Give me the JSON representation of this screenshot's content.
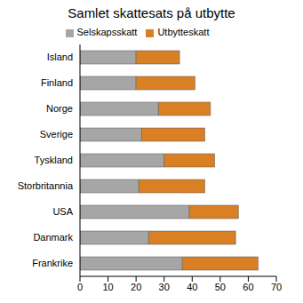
{
  "chart_data": {
    "type": "bar",
    "title": "Samlet skattesats på utbytte",
    "orientation": "horizontal",
    "stacked": true,
    "grid": false,
    "legend": "top",
    "categories": [
      "Island",
      "Finland",
      "Norge",
      "Sverige",
      "Tyskland",
      "Storbritannia",
      "USA",
      "Danmark",
      "Frankrike"
    ],
    "series": [
      {
        "name": "Selskapsskatt",
        "color": "#a6a6a6",
        "values": [
          20,
          20,
          28,
          22,
          30,
          21,
          39,
          24.5,
          36.5
        ]
      },
      {
        "name": "Utbytteskatt",
        "color": "#d98024",
        "values": [
          15.5,
          21,
          18.5,
          22.5,
          18,
          23.5,
          17.5,
          31,
          27
        ]
      }
    ],
    "xlim": [
      0,
      70
    ],
    "xticks": [
      0,
      10,
      20,
      30,
      40,
      50,
      60,
      70
    ]
  }
}
